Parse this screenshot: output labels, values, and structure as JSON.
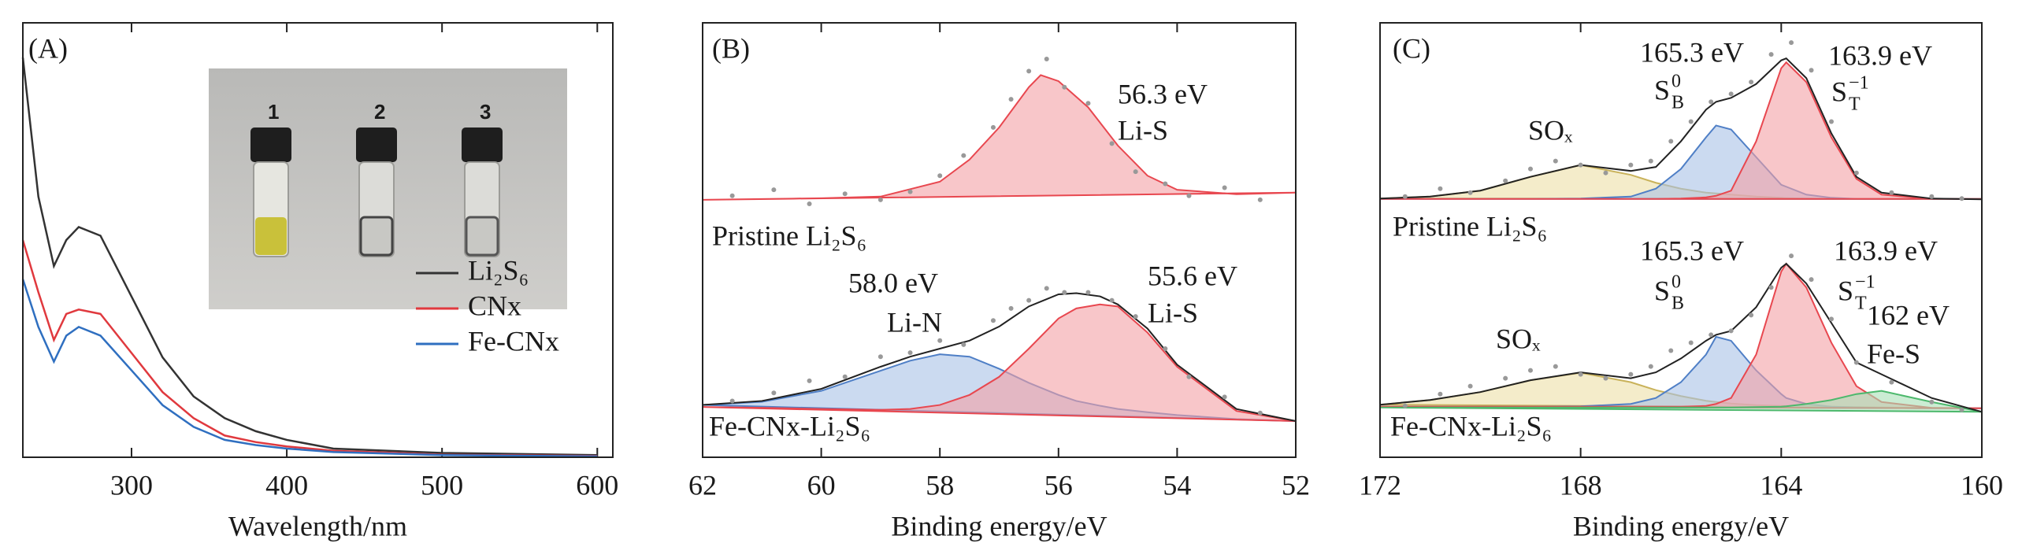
{
  "chart_data": [
    {
      "type": "line",
      "title": "(A)",
      "xlabel": "Wavelength/nm",
      "xlim": [
        230,
        610
      ],
      "xticks": [
        300,
        400,
        500,
        600
      ],
      "ylim": [
        0,
        100
      ],
      "legend": "lower right",
      "inset_labels": [
        "1",
        "2",
        "3"
      ],
      "x": [
        230,
        240,
        250,
        258,
        266,
        280,
        300,
        320,
        340,
        360,
        380,
        400,
        430,
        500,
        600
      ],
      "series": [
        {
          "name": "Li₂S₆",
          "color": "#333333",
          "values": [
            92,
            60,
            44,
            50,
            53,
            51,
            37,
            23,
            14,
            9,
            6,
            4,
            2,
            1,
            0.5
          ]
        },
        {
          "name": "CNx",
          "color": "#e0393e",
          "values": [
            50,
            38,
            27,
            33,
            34,
            33,
            24,
            15,
            9,
            5,
            3.5,
            2.5,
            1.5,
            0.6,
            0.3
          ]
        },
        {
          "name": "Fe-CNx",
          "color": "#2f6fc0",
          "values": [
            41,
            30,
            22,
            28,
            30,
            28,
            20,
            12,
            7,
            4,
            2.8,
            2,
            1.2,
            0.5,
            0.2
          ]
        }
      ]
    },
    {
      "type": "xps",
      "title": "(B)",
      "xlabel": "Binding energy/eV",
      "xlim": [
        62,
        52
      ],
      "xticks": [
        62,
        60,
        58,
        56,
        54,
        52
      ],
      "ylim": [
        -8,
        100
      ],
      "spectra": [
        {
          "label": "Pristine Li₂S₆",
          "raw": {
            "color": "#999999",
            "x": [
              61.5,
              60.8,
              60.2,
              59.6,
              59,
              58.5,
              58,
              57.6,
              57.1,
              56.8,
              56.5,
              56.2,
              55.9,
              55.5,
              55.1,
              54.7,
              54.2,
              53.8,
              53.2,
              52.6
            ],
            "values": [
              57,
              58.5,
              55,
              57.5,
              56,
              58,
              62,
              67,
              74,
              81,
              88,
              91,
              84,
              80,
              70,
              63,
              60,
              57,
              59,
              56
            ]
          },
          "components": [
            {
              "color": "#e8474f",
              "fill": "#f4a0a5",
              "x": [
                62,
                61,
                60,
                59,
                58,
                57.5,
                57,
                56.5,
                56.3,
                56,
                55.5,
                55,
                54.5,
                54,
                53,
                52
              ],
              "values": [
                56,
                56.2,
                56.4,
                56.8,
                60.5,
                66,
                74,
                84,
                87,
                85.5,
                79,
                69.5,
                62,
                58.5,
                57.4,
                57.8
              ]
            }
          ]
        },
        {
          "label": "Fe-CNx-Li₂S₆",
          "raw": {
            "color": "#999999",
            "x": [
              61.5,
              60.8,
              60.2,
              59.6,
              59,
              58.5,
              58,
              57.6,
              57.1,
              56.8,
              56.5,
              56.2,
              55.9,
              55.5,
              55.1,
              54.7,
              54.2,
              53.8,
              53.2,
              52.6
            ],
            "values": [
              6,
              8,
              11,
              12,
              17,
              18,
              21,
              20,
              26,
              29,
              31,
              34,
              33,
              33,
              31,
              27,
              19,
              12,
              7,
              3
            ]
          },
          "envelope": {
            "color": "#222222",
            "x": [
              62,
              61,
              60,
              59,
              58.5,
              58,
              57.5,
              57,
              56.5,
              56,
              55.7,
              55.3,
              55,
              54.5,
              54,
              53,
              52
            ],
            "values": [
              5,
              6,
              9,
              14.5,
              17,
              19,
              21,
              24.5,
              29.5,
              32.5,
              32.8,
              32,
              30,
              24,
              15,
              4,
              1
            ]
          },
          "components": [
            {
              "color": "#4f7fc6",
              "fill": "#a9c2e6",
              "x": [
                62,
                61,
                60,
                59,
                58.5,
                58,
                57.5,
                57,
                56.5,
                56,
                55.7,
                55.3,
                55,
                54.5,
                54,
                53,
                52
              ],
              "values": [
                5,
                5.8,
                8.5,
                13.5,
                16,
                17.6,
                17,
                14,
                10.5,
                7.5,
                6,
                4.8,
                4,
                3.2,
                2.5,
                1.5,
                1
              ]
            },
            {
              "color": "#e8474f",
              "fill": "#f4a0a5",
              "x": [
                62,
                61,
                60,
                59,
                58.5,
                58,
                57.5,
                57,
                56.5,
                56,
                55.7,
                55.3,
                55,
                54.5,
                54,
                53,
                52
              ],
              "values": [
                4.5,
                4.3,
                4,
                3.8,
                4,
                5,
                7.5,
                12,
                19,
                26.5,
                29,
                30,
                29.5,
                23,
                14.5,
                3.5,
                1
              ]
            }
          ]
        }
      ],
      "annotations": [
        {
          "text": "56.3 eV"
        },
        {
          "text": "Li-S"
        },
        {
          "text": "58.0 eV"
        },
        {
          "text": "Li-N"
        },
        {
          "text": "55.6 eV"
        },
        {
          "text": "Li-S"
        }
      ]
    },
    {
      "type": "xps",
      "title": "(C)",
      "xlabel": "Binding energy/eV",
      "xlim": [
        172,
        160
      ],
      "xticks": [
        172,
        168,
        164,
        160
      ],
      "ylim": [
        -10,
        100
      ],
      "spectra": [
        {
          "label": "Pristine Li₂S₆",
          "raw": {
            "color": "#999999",
            "x": [
              171.5,
              170.8,
              170.2,
              169.5,
              169,
              168.5,
              168,
              167.5,
              167,
              166.6,
              166.2,
              165.8,
              165.4,
              165,
              164.6,
              164.2,
              163.8,
              163.4,
              163,
              162.5,
              161.8,
              161,
              160.4
            ],
            "values": [
              56,
              58,
              57,
              60,
              63,
              65,
              64,
              62,
              64,
              65,
              70,
              75,
              80,
              82,
              85,
              92,
              95,
              88,
              75,
              62,
              57,
              56,
              55.5
            ]
          },
          "envelope": {
            "color": "#222222",
            "x": [
              172,
              171,
              170,
              169,
              168,
              167,
              166.5,
              166,
              165.5,
              165.3,
              165,
              164.5,
              164,
              163.9,
              163.5,
              163,
              162.5,
              162,
              161,
              160
            ],
            "values": [
              55.5,
              56,
              57.5,
              61,
              64,
              62.5,
              63.5,
              70,
              78,
              80,
              81,
              84.5,
              90.5,
              91,
              86,
              72,
              61,
              57,
              55.5,
              55.3
            ]
          },
          "components": [
            {
              "color": "#c9b25a",
              "fill": "#ece0a6",
              "x": [
                172,
                171,
                170,
                169,
                168,
                167,
                166.5,
                166,
                165.5,
                165.3,
                165,
                164.5,
                164,
                163.9,
                163.5,
                163,
                162.5,
                162,
                161,
                160
              ],
              "values": [
                55.5,
                56,
                57.5,
                61,
                64,
                61.5,
                59.5,
                58,
                57,
                56.8,
                56.5,
                56,
                55.7,
                55.6,
                55.5,
                55.4,
                55.4,
                55.4,
                55.4,
                55.4
              ]
            },
            {
              "color": "#4f7fc6",
              "fill": "#a9c2e6",
              "x": [
                172,
                171,
                170,
                169,
                168,
                167,
                166.5,
                166,
                165.5,
                165.3,
                165,
                164.5,
                164,
                163.9,
                163.5,
                163,
                162.5,
                162,
                161,
                160
              ],
              "values": [
                55.4,
                55.4,
                55.4,
                55.4,
                55.5,
                56,
                58,
                63,
                71,
                74,
                73,
                66,
                59,
                58.5,
                56.5,
                55.7,
                55.4,
                55.4,
                55.4,
                55.4
              ]
            },
            {
              "color": "#e8474f",
              "fill": "#f4a0a5",
              "x": [
                172,
                171,
                170,
                169,
                168,
                167,
                166.5,
                166,
                165.5,
                165.3,
                165,
                164.5,
                164,
                163.9,
                163.5,
                163,
                162.5,
                162,
                161,
                160
              ],
              "values": [
                55.4,
                55.4,
                55.4,
                55.4,
                55.4,
                55.4,
                55.4,
                55.5,
                55.8,
                56.2,
                57.5,
                70,
                88.5,
                90,
                85,
                71,
                60.5,
                56.5,
                55.4,
                55.4
              ]
            }
          ]
        },
        {
          "label": "Fe-CNx-Li₂S₆",
          "raw": {
            "color": "#999999",
            "x": [
              171.5,
              170.8,
              170.2,
              169.5,
              169,
              168.5,
              168,
              167.5,
              167,
              166.6,
              166.2,
              165.8,
              165.4,
              165,
              164.6,
              164.2,
              163.8,
              163.4,
              163,
              162.5,
              161.8,
              161,
              160.4
            ],
            "values": [
              3,
              6,
              8,
              10,
              12,
              13,
              11,
              10,
              11,
              13,
              17,
              19,
              21,
              22,
              26,
              33,
              41,
              35,
              25,
              14,
              9,
              4,
              2
            ]
          },
          "envelope": {
            "color": "#222222",
            "x": [
              172,
              171,
              170,
              169,
              168,
              167,
              166.5,
              166,
              165.5,
              165.3,
              165,
              164.5,
              164,
              163.9,
              163.5,
              163,
              162.5,
              162,
              161,
              160
            ],
            "values": [
              3.3,
              4.5,
              6.5,
              9.5,
              11.5,
              10,
              11.5,
              15,
              19.5,
              21,
              22,
              28,
              38,
              39,
              34,
              24,
              14,
              11,
              5,
              1.5
            ]
          },
          "components": [
            {
              "color": "#c9b25a",
              "fill": "#ece0a6",
              "x": [
                172,
                171,
                170,
                169,
                168,
                167,
                166.5,
                166,
                165.5,
                165.3,
                165,
                164.5,
                164,
                163.9,
                163.5,
                163,
                162.5,
                162,
                161,
                160
              ],
              "values": [
                3.3,
                4.5,
                6.5,
                9.5,
                11.4,
                9,
                7,
                5.5,
                4.3,
                4,
                3.6,
                3.2,
                3,
                3,
                2.9,
                2.8,
                2.7,
                2.6,
                2.5,
                2.4
              ]
            },
            {
              "color": "#4f7fc6",
              "fill": "#a9c2e6",
              "x": [
                172,
                171,
                170,
                169,
                168,
                167,
                166.5,
                166,
                165.5,
                165.3,
                165,
                164.5,
                164,
                163.9,
                163.5,
                163,
                162.5,
                162,
                161,
                160
              ],
              "values": [
                2.8,
                2.8,
                2.8,
                2.8,
                2.9,
                3.5,
                5,
                9,
                16,
                20.5,
                19.5,
                12,
                6,
                5,
                3.5,
                2.8,
                2.6,
                2.5,
                2.4,
                2.4
              ]
            },
            {
              "color": "#e8474f",
              "fill": "#f4a0a5",
              "x": [
                172,
                171,
                170,
                169,
                168,
                167,
                166.5,
                166,
                165.5,
                165.3,
                165,
                164.5,
                164,
                163.9,
                163.5,
                163,
                162.5,
                162,
                161,
                160
              ],
              "values": [
                2.8,
                2.8,
                2.8,
                2.8,
                2.8,
                2.8,
                2.8,
                2.8,
                3,
                3.5,
                5,
                16,
                37,
                39,
                33,
                19,
                8,
                4,
                2.5,
                2.4
              ]
            },
            {
              "color": "#4cb86c",
              "fill": "#a8e0b5",
              "x": [
                172,
                171,
                170,
                169,
                168,
                167,
                166.5,
                166,
                165.5,
                165.3,
                165,
                164.5,
                164,
                163.9,
                163.5,
                163,
                162.5,
                162,
                161,
                160
              ],
              "values": [
                2.6,
                2.6,
                2.6,
                2.6,
                2.6,
                2.6,
                2.6,
                2.6,
                2.6,
                2.6,
                2.6,
                2.7,
                2.8,
                2.9,
                3.5,
                4.5,
                6,
                6.8,
                4,
                1.5
              ]
            }
          ]
        }
      ],
      "annotations": [
        {
          "text": "165.3 eV"
        },
        {
          "text": "S",
          "sup": "0",
          "sub": "B"
        },
        {
          "text": "163.9 eV"
        },
        {
          "text": "S",
          "sup": "−1",
          "sub": "T"
        },
        {
          "text": "SOₓ"
        },
        {
          "text": "165.3 eV"
        },
        {
          "text": "S",
          "sup": "0",
          "sub": "B"
        },
        {
          "text": "163.9 eV"
        },
        {
          "text": "S",
          "sup": "−1",
          "sub": "T"
        },
        {
          "text": "162 eV"
        },
        {
          "text": "Fe-S"
        },
        {
          "text": "SOₓ"
        }
      ]
    }
  ]
}
